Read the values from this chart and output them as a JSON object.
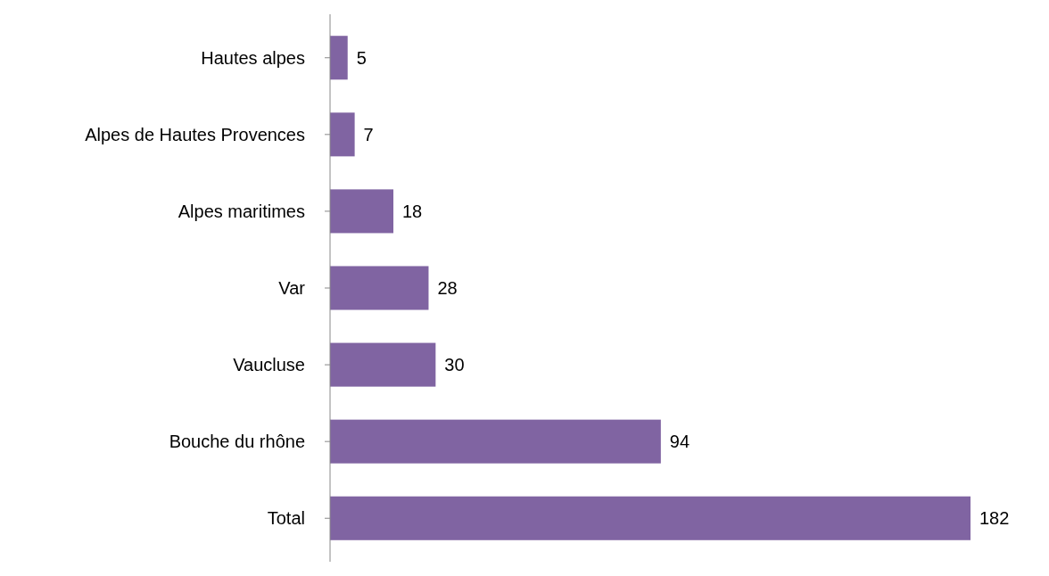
{
  "chart_data": {
    "type": "bar",
    "orientation": "horizontal",
    "categories": [
      "Hautes alpes",
      "Alpes de Hautes Provences",
      "Alpes maritimes",
      "Var",
      "Vaucluse",
      "Bouche du rhône",
      "Total"
    ],
    "values": [
      5,
      7,
      18,
      28,
      30,
      94,
      182
    ],
    "color": "#8064a2",
    "data_labels": true
  }
}
